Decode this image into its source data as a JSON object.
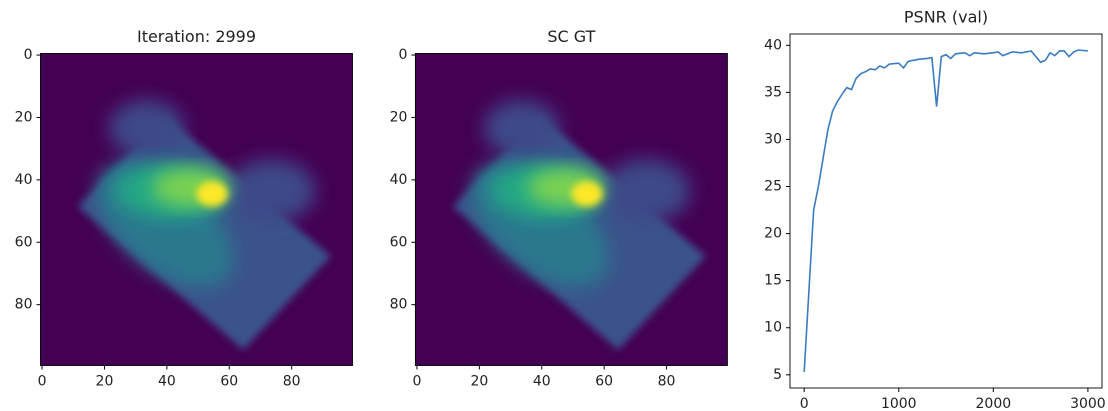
{
  "chart_data": [
    {
      "type": "image",
      "title": "Iteration: 2999",
      "xlim": [
        -0.5,
        99.5
      ],
      "ylim": [
        99.5,
        -0.5
      ],
      "xticks": [
        0,
        20,
        40,
        60,
        80
      ],
      "yticks": [
        0,
        20,
        40,
        60,
        80
      ]
    },
    {
      "type": "image",
      "title": "SC GT",
      "xlim": [
        -0.5,
        99.5
      ],
      "ylim": [
        99.5,
        -0.5
      ],
      "xticks": [
        0,
        20,
        40,
        60,
        80
      ],
      "yticks": [
        0,
        20,
        40,
        60,
        80
      ]
    },
    {
      "type": "line",
      "title": "PSNR (val)",
      "color": "#3b7bbf",
      "x": [
        0,
        100,
        150,
        200,
        250,
        300,
        350,
        400,
        450,
        500,
        550,
        600,
        650,
        700,
        750,
        800,
        850,
        900,
        1000,
        1050,
        1100,
        1200,
        1300,
        1350,
        1400,
        1450,
        1500,
        1550,
        1600,
        1700,
        1750,
        1800,
        1900,
        2000,
        2050,
        2100,
        2200,
        2300,
        2400,
        2500,
        2550,
        2600,
        2650,
        2700,
        2750,
        2800,
        2850,
        2900,
        2999
      ],
      "values": [
        5.3,
        22.5,
        25,
        28,
        31,
        33,
        34,
        34.8,
        35.5,
        35.3,
        36.5,
        37,
        37.2,
        37.5,
        37.4,
        37.8,
        37.6,
        38,
        38.1,
        37.6,
        38.3,
        38.5,
        38.6,
        38.7,
        33.5,
        38.8,
        39,
        38.6,
        39.1,
        39.2,
        38.9,
        39.2,
        39.1,
        39.2,
        39.3,
        38.9,
        39.3,
        39.2,
        39.4,
        38.2,
        38.4,
        39.2,
        38.9,
        39.4,
        39.4,
        38.8,
        39.3,
        39.5,
        39.4
      ],
      "xlim": [
        -150,
        3149
      ],
      "ylim": [
        3.6,
        41.2
      ],
      "xticks": [
        0,
        1000,
        2000,
        3000
      ],
      "yticks": [
        5,
        10,
        15,
        20,
        25,
        30,
        35,
        40
      ]
    }
  ]
}
